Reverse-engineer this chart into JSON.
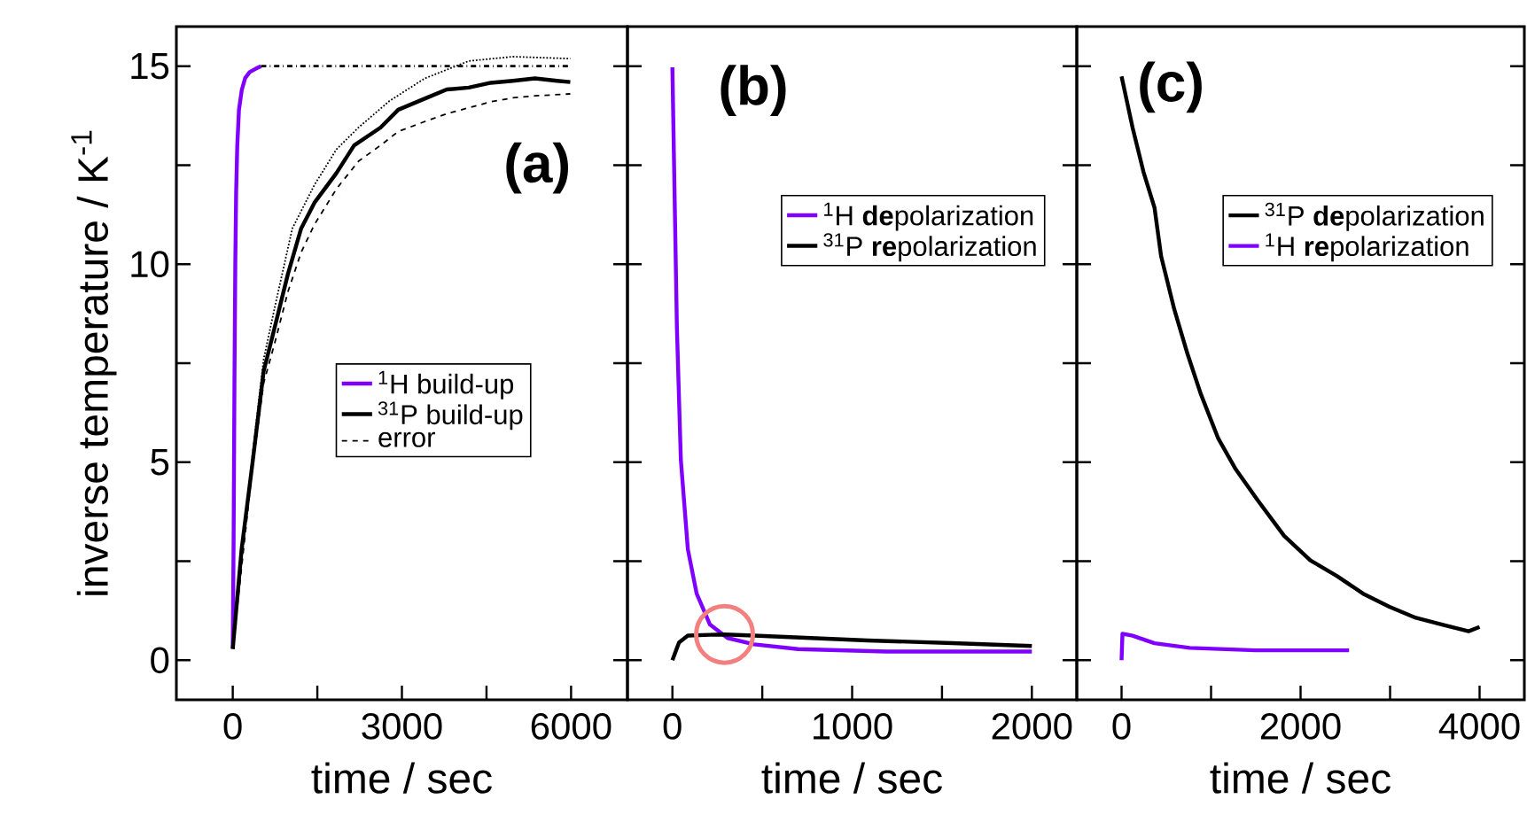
{
  "chart_data": [
    {
      "type": "line",
      "title": "(a)",
      "xlabel": "time / sec",
      "ylabel": "inverse temperature / K$^{-1}$",
      "xlim": [
        -1000,
        7000
      ],
      "ylim": [
        -1,
        16
      ],
      "xticks": [
        0,
        {
          "value": 1500,
          "label": null
        },
        3000,
        {
          "value": 4500,
          "label": null
        },
        6000
      ],
      "yticks": [
        0,
        {
          "value": 2.5,
          "label": null
        },
        5,
        {
          "value": 7.5,
          "label": null
        },
        10,
        {
          "value": 12.5,
          "label": null
        },
        15
      ],
      "legend": "center",
      "series": [
        {
          "name": "$^{1}$H build-up",
          "color": "#7f00ff",
          "line_style": "solid",
          "x": [
            0,
            15,
            30,
            45,
            60,
            80,
            110,
            160,
            220,
            300,
            400,
            500
          ],
          "values": [
            0.3,
            3,
            7,
            10,
            11.8,
            13,
            13.9,
            14.4,
            14.7,
            14.85,
            14.93,
            15
          ]
        },
        {
          "name": "$^{31}$P build-up",
          "color": "#000000",
          "line_style": "solid",
          "x": [
            0,
            157,
            352,
            548,
            743,
            978,
            1213,
            1448,
            1839,
            2152,
            2621,
            2935,
            3404,
            3795,
            4186,
            4577,
            4968,
            5360,
            5751,
            5986
          ],
          "values": [
            0.28,
            2.8,
            5.0,
            7.3,
            8.4,
            9.75,
            10.9,
            11.55,
            12.3,
            13.0,
            13.45,
            13.9,
            14.18,
            14.41,
            14.46,
            14.58,
            14.63,
            14.69,
            14.63,
            14.6
          ]
        },
        {
          "name": "error",
          "color": "#000000",
          "line_style": "dashed",
          "x": [
            0,
            352,
            548,
            743,
            978,
            1213,
            1448,
            1839,
            2230,
            2621,
            2935,
            3404,
            3795,
            4186,
            4577,
            4968,
            5360,
            5986
          ],
          "values": [
            0.3,
            4.9,
            7.0,
            8.0,
            9.3,
            10.3,
            11.0,
            11.9,
            12.6,
            13.0,
            13.35,
            13.6,
            13.8,
            13.95,
            14.1,
            14.2,
            14.25,
            14.3
          ]
        },
        {
          "color": "#000000",
          "line_style": "dotted",
          "x": [
            0,
            352,
            548,
            743,
            1056,
            1448,
            1839,
            2230,
            2778,
            3404,
            4186,
            4968,
            5986
          ],
          "values": [
            0.3,
            5.2,
            7.6,
            8.9,
            10.9,
            12.0,
            12.9,
            13.45,
            14.12,
            14.69,
            15.13,
            15.24,
            15.19
          ]
        },
        {
          "color": "#000000",
          "line_style": "dashdot",
          "x": [
            500,
            6000
          ],
          "values": [
            15,
            15
          ]
        }
      ]
    },
    {
      "type": "line",
      "title": "(b)",
      "xlabel": "time / sec",
      "xlim": [
        -250,
        2250
      ],
      "ylim": [
        -1,
        16
      ],
      "xticks": [
        0,
        {
          "value": 500,
          "label": null
        },
        1000,
        {
          "value": 1500,
          "label": null
        },
        2000
      ],
      "yticks": [
        0,
        {
          "value": 2.5,
          "label": null
        },
        5,
        {
          "value": 7.5,
          "label": null
        },
        10,
        {
          "value": 12.5,
          "label": null
        },
        15
      ],
      "tick_labels": "x",
      "legend": "top right",
      "series": [
        {
          "name": "$^{1}$H **de**polarization",
          "color": "#7f00ff",
          "line_style": "solid",
          "x": [
            0,
            12,
            25,
            47,
            86,
            135,
            209,
            307,
            454,
            699,
            1190,
            2000
          ],
          "values": [
            14.97,
            11.8,
            8.4,
            5.06,
            2.8,
            1.68,
            0.9,
            0.56,
            0.4,
            0.28,
            0.22,
            0.22
          ]
        },
        {
          "name": "$^{31}$P **re**polarization",
          "color": "#000000",
          "line_style": "solid",
          "x": [
            0,
            37,
            86,
            209,
            290,
            454,
            1086,
            1559,
            2000
          ],
          "values": [
            0,
            0.45,
            0.62,
            0.64,
            0.65,
            0.62,
            0.5,
            0.43,
            0.36
          ]
        }
      ]
    },
    {
      "type": "line",
      "title": "(c)",
      "xlabel": "time / sec",
      "xlim": [
        -500,
        4500
      ],
      "ylim": [
        -1,
        16
      ],
      "xticks": [
        0,
        {
          "value": 1000,
          "label": null
        },
        2000,
        {
          "value": 3000,
          "label": null
        },
        4000
      ],
      "yticks": [
        0,
        {
          "value": 2.5,
          "label": null
        },
        5,
        {
          "value": 7.5,
          "label": null
        },
        10,
        {
          "value": 12.5,
          "label": null
        },
        15
      ],
      "tick_labels": "x",
      "legend": "top right",
      "series": [
        {
          "name": "$^{31}$P **de**polarization",
          "color": "#000000",
          "line_style": "solid",
          "x": [
            0,
            123,
            245,
            368,
            442,
            589,
            736,
            884,
            1080,
            1276,
            1521,
            1816,
            2110,
            2404,
            2699,
            2993,
            3288,
            3582,
            3877,
            4000
          ],
          "values": [
            14.74,
            13.45,
            12.33,
            11.43,
            10.2,
            8.86,
            7.74,
            6.73,
            5.6,
            4.82,
            4.04,
            3.14,
            2.52,
            2.13,
            1.68,
            1.35,
            1.07,
            0.9,
            0.73,
            0.84
          ]
        },
        {
          "name": "$^{1}$H **re**polarization",
          "color": "#7f00ff",
          "line_style": "solid",
          "x": [
            0,
            10,
            123,
            368,
            761,
            1496,
            2542
          ],
          "values": [
            0,
            0.67,
            0.62,
            0.43,
            0.31,
            0.25,
            0.25
          ]
        }
      ]
    }
  ]
}
